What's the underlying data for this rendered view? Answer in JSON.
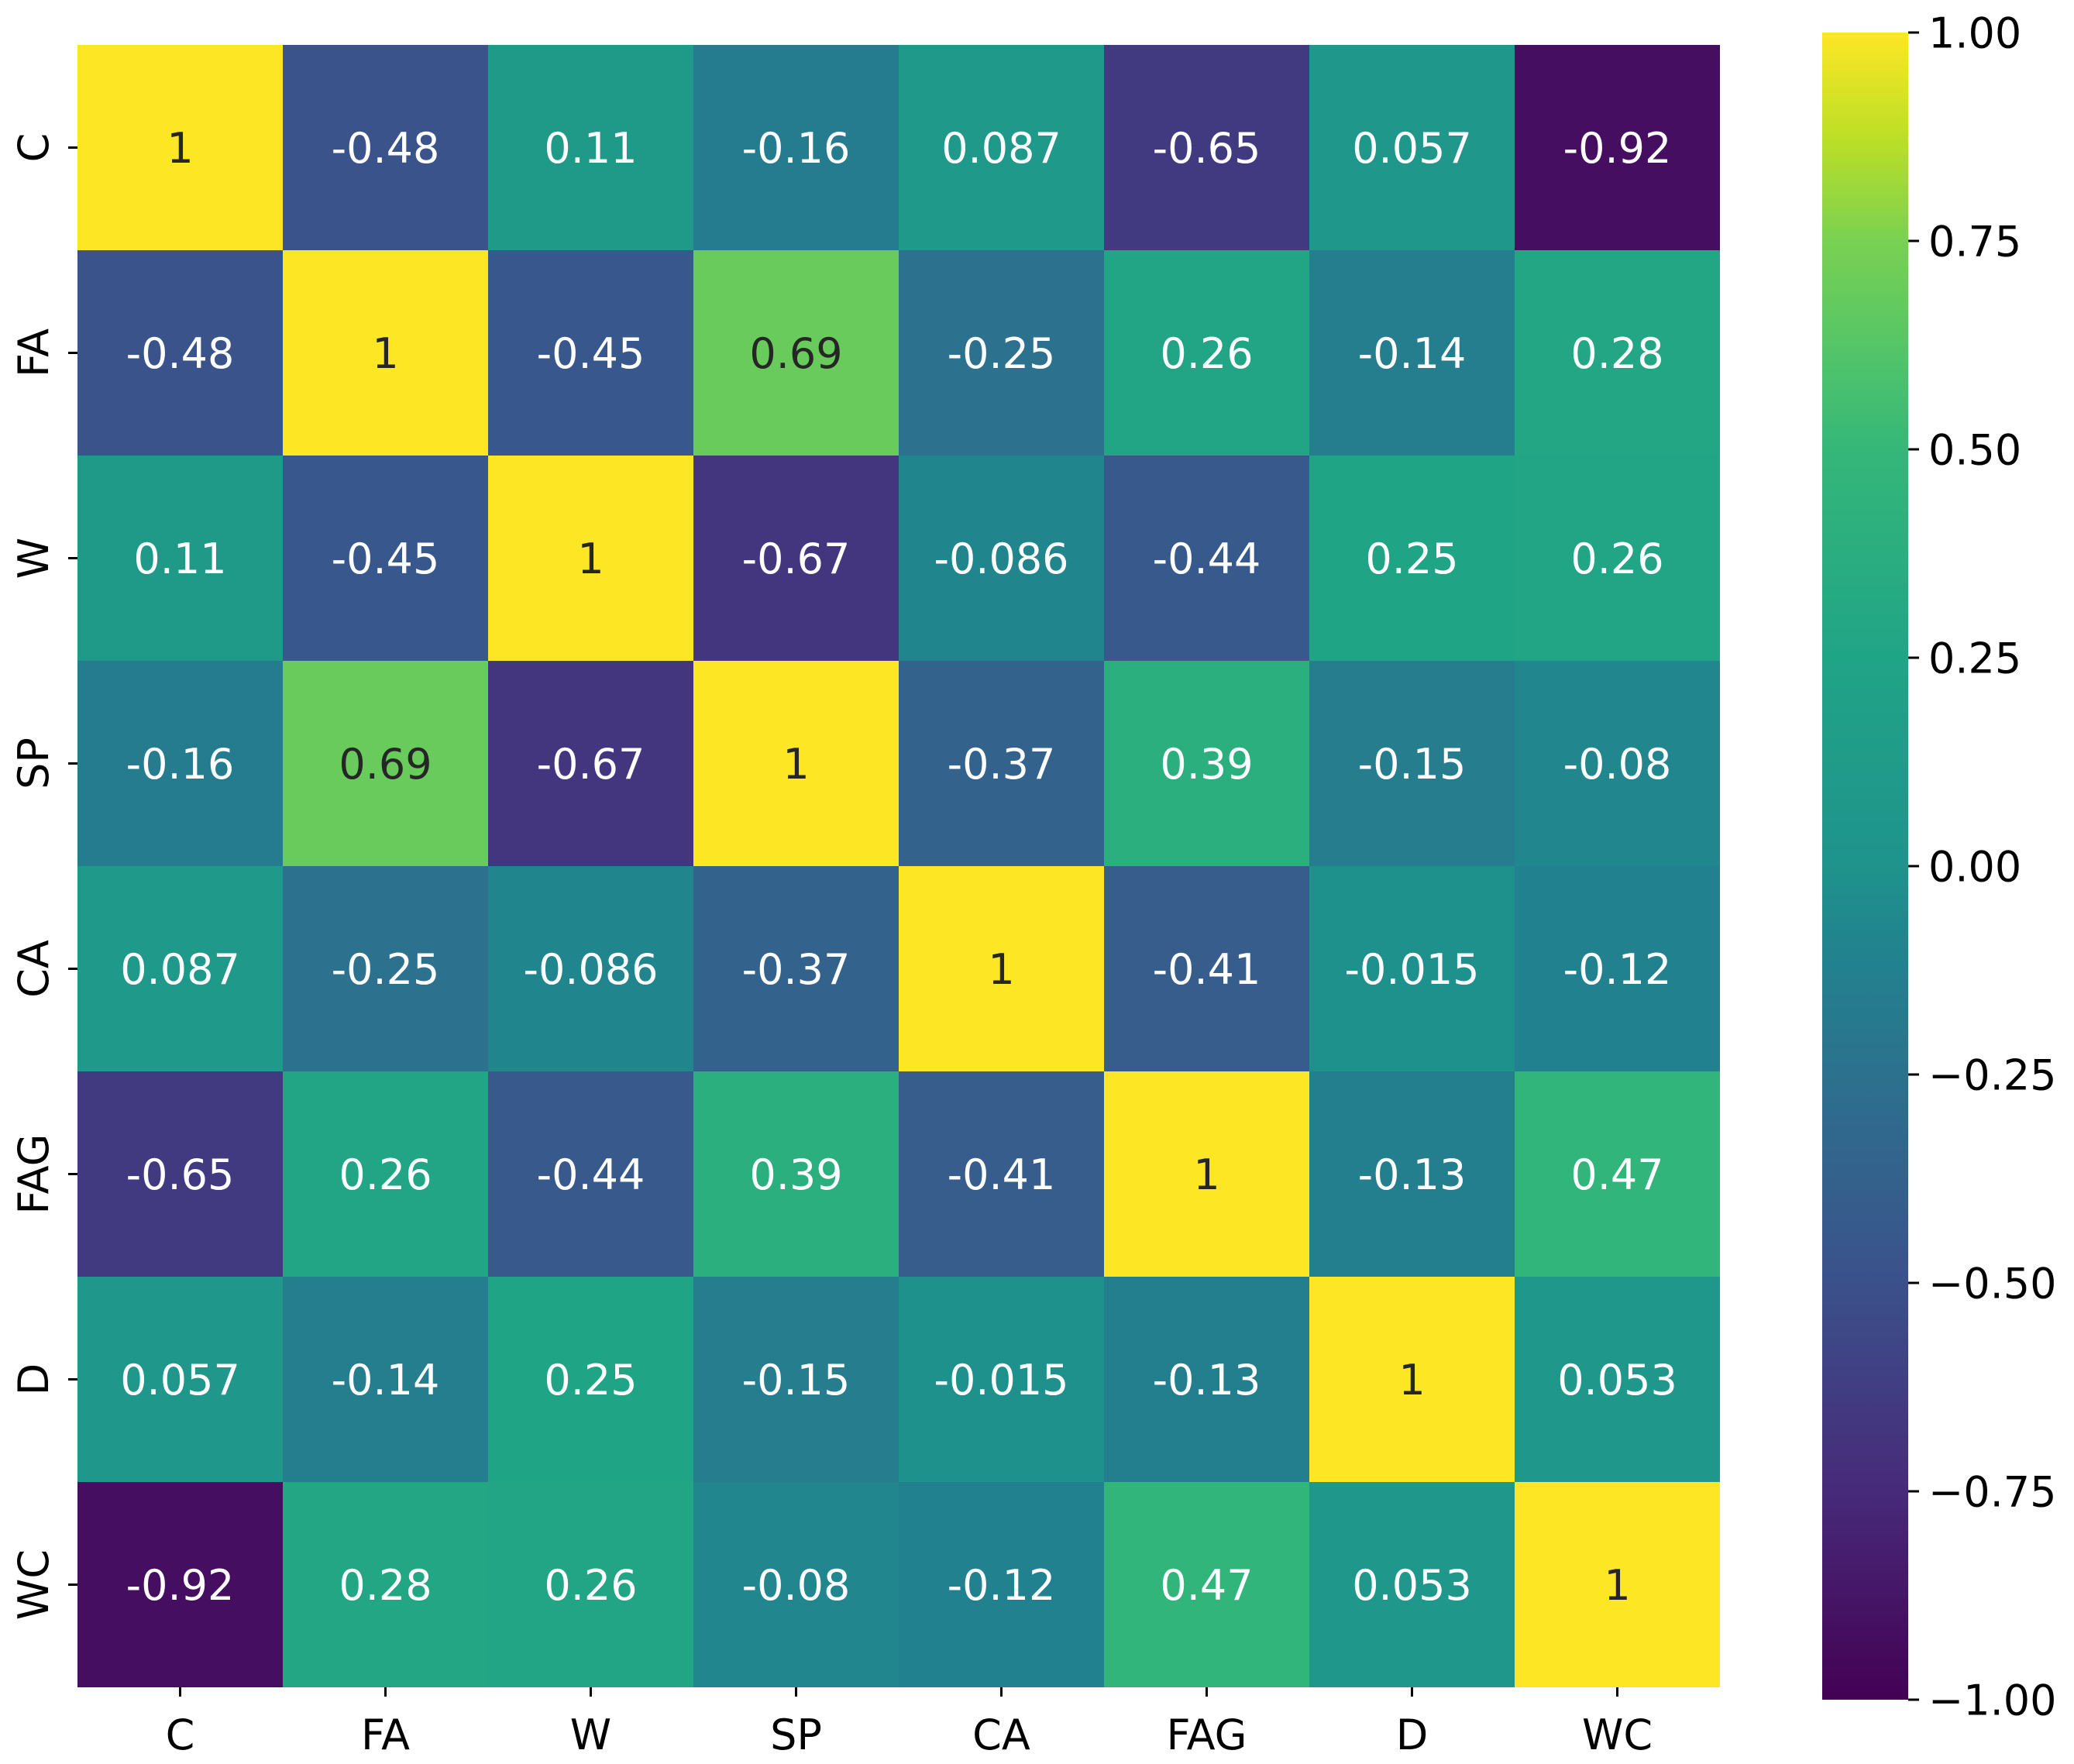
{
  "chart_data": {
    "type": "heatmap",
    "title": "",
    "xlabel": "",
    "ylabel": "",
    "x_labels": [
      "C",
      "FA",
      "W",
      "SP",
      "CA",
      "FAG",
      "D",
      "WC"
    ],
    "y_labels": [
      "C",
      "FA",
      "W",
      "SP",
      "CA",
      "FAG",
      "D",
      "WC"
    ],
    "matrix": [
      [
        1,
        -0.48,
        0.11,
        -0.16,
        0.087,
        -0.65,
        0.057,
        -0.92
      ],
      [
        -0.48,
        1,
        -0.45,
        0.69,
        -0.25,
        0.26,
        -0.14,
        0.28
      ],
      [
        0.11,
        -0.45,
        1,
        -0.67,
        -0.086,
        -0.44,
        0.25,
        0.26
      ],
      [
        -0.16,
        0.69,
        -0.67,
        1,
        -0.37,
        0.39,
        -0.15,
        -0.08
      ],
      [
        0.087,
        -0.25,
        -0.086,
        -0.37,
        1,
        -0.41,
        -0.015,
        -0.12
      ],
      [
        -0.65,
        0.26,
        -0.44,
        0.39,
        -0.41,
        1,
        -0.13,
        0.47
      ],
      [
        0.057,
        -0.14,
        0.25,
        -0.15,
        -0.015,
        -0.13,
        1,
        0.053
      ],
      [
        -0.92,
        0.28,
        0.26,
        -0.08,
        -0.12,
        0.47,
        0.053,
        1
      ]
    ],
    "cell_labels": [
      [
        "1",
        "-0.48",
        "0.11",
        "-0.16",
        "0.087",
        "-0.65",
        "0.057",
        "-0.92"
      ],
      [
        "-0.48",
        "1",
        "-0.45",
        "0.69",
        "-0.25",
        "0.26",
        "-0.14",
        "0.28"
      ],
      [
        "0.11",
        "-0.45",
        "1",
        "-0.67",
        "-0.086",
        "-0.44",
        "0.25",
        "0.26"
      ],
      [
        "-0.16",
        "0.69",
        "-0.67",
        "1",
        "-0.37",
        "0.39",
        "-0.15",
        "-0.08"
      ],
      [
        "0.087",
        "-0.25",
        "-0.086",
        "-0.37",
        "1",
        "-0.41",
        "-0.015",
        "-0.12"
      ],
      [
        "-0.65",
        "0.26",
        "-0.44",
        "0.39",
        "-0.41",
        "1",
        "-0.13",
        "0.47"
      ],
      [
        "0.057",
        "-0.14",
        "0.25",
        "-0.15",
        "-0.015",
        "-0.13",
        "1",
        "0.053"
      ],
      [
        "-0.92",
        "0.28",
        "0.26",
        "-0.08",
        "-0.12",
        "0.47",
        "0.053",
        "1"
      ]
    ],
    "colorbar": {
      "range": [
        -1.0,
        1.0
      ],
      "ticks": [
        1.0,
        0.75,
        0.5,
        0.25,
        0.0,
        -0.25,
        -0.5,
        -0.75,
        -1.0
      ],
      "tick_labels": [
        "1.00",
        "0.75",
        "0.50",
        "0.25",
        "0.00",
        "−0.25",
        "−0.50",
        "−0.75",
        "−1.00"
      ],
      "colormap_stops": [
        {
          "v": -1.0,
          "color": "#440154"
        },
        {
          "v": -0.75,
          "color": "#472a7a"
        },
        {
          "v": -0.5,
          "color": "#3b518b"
        },
        {
          "v": -0.25,
          "color": "#2c718e"
        },
        {
          "v": -0.1,
          "color": "#21838e"
        },
        {
          "v": 0.0,
          "color": "#1f938c"
        },
        {
          "v": 0.25,
          "color": "#20a486"
        },
        {
          "v": 0.5,
          "color": "#35b779"
        },
        {
          "v": 0.6,
          "color": "#4ec36b"
        },
        {
          "v": 0.75,
          "color": "#7ad151"
        },
        {
          "v": 0.875,
          "color": "#bddf26"
        },
        {
          "v": 1.0,
          "color": "#fde725"
        }
      ]
    },
    "annotation_colors": {
      "dark_text": "#262626",
      "light_text": "#ffffff"
    },
    "grid": false,
    "legend": "colorbar-right"
  }
}
